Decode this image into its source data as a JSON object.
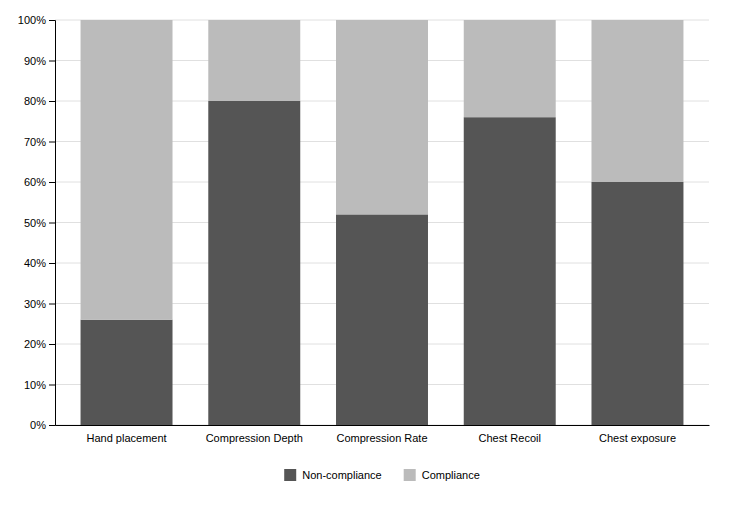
{
  "chart_data": {
    "type": "bar",
    "stacked": true,
    "categories": [
      "Hand placement",
      "Compression Depth",
      "Compression Rate",
      "Chest Recoil",
      "Chest exposure"
    ],
    "series": [
      {
        "name": "Non-compliance",
        "color": "#555555",
        "values": [
          26,
          80,
          52,
          76,
          60
        ]
      },
      {
        "name": "Compliance",
        "color": "#bbbbbb",
        "values": [
          74,
          20,
          48,
          24,
          40
        ]
      }
    ],
    "ylim": [
      0,
      100
    ],
    "yticks": [
      {
        "value": 0,
        "label": "0%"
      },
      {
        "value": 10,
        "label": "10%"
      },
      {
        "value": 20,
        "label": "20%"
      },
      {
        "value": 30,
        "label": "30%"
      },
      {
        "value": 40,
        "label": "40%"
      },
      {
        "value": 50,
        "label": "50%"
      },
      {
        "value": 60,
        "label": "60%"
      },
      {
        "value": 70,
        "label": "70%"
      },
      {
        "value": 80,
        "label": "80%"
      },
      {
        "value": 90,
        "label": "90%"
      },
      {
        "value": 100,
        "label": "100%"
      }
    ],
    "grid": true,
    "legend": "bottom"
  }
}
